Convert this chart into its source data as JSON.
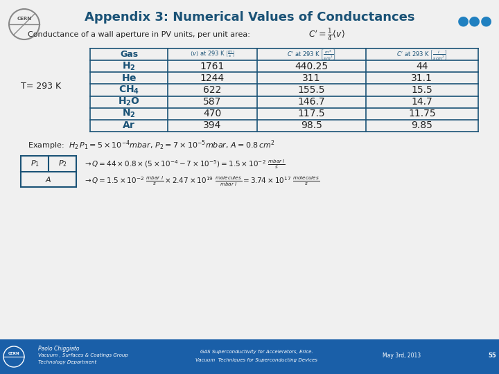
{
  "title": "Appendix 3: Numerical Values of Conductances",
  "title_color": "#1a5276",
  "bg_color": "#f0f0f0",
  "footer_bg": "#1a5fa8",
  "table_color": "#1a5276",
  "t_label": "T= 293 K",
  "gas_labels_math": [
    "H_2",
    "He",
    "CH_4",
    "H_2O",
    "N_2",
    "Ar"
  ],
  "table_data": [
    [
      "1761",
      "440.25",
      "44"
    ],
    [
      "1244",
      "311",
      "31.1"
    ],
    [
      "622",
      "155.5",
      "15.5"
    ],
    [
      "587",
      "146.7",
      "14.7"
    ],
    [
      "470",
      "117.5",
      "11.75"
    ],
    [
      "394",
      "98.5",
      "9.85"
    ]
  ],
  "footer_left": [
    "Paolo Chiggiato",
    "Vacuum , Surfaces & Coatings Group",
    "Technology Department"
  ],
  "footer_center": [
    "GAS Superconductivity for Accelerators, Erice.",
    "Vacuum  Techniques for Superconducting Devices"
  ],
  "footer_right": "May 3rd, 2013",
  "footer_page": "55"
}
